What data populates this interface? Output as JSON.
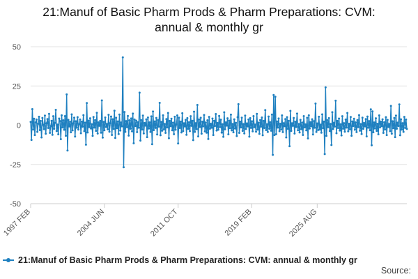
{
  "chart_data": {
    "type": "line",
    "title_lines": [
      "21:Manuf of Basic Pharm Prods & Pharm Preparations: CVM:",
      "annual & monthly gr"
    ],
    "xlabel": "",
    "ylabel": "",
    "ylim": [
      -50,
      50
    ],
    "yticks": [
      50,
      25,
      0,
      -25,
      -50
    ],
    "xticks": [
      "1997 FEB",
      "2004 JUN",
      "2011 OCT",
      "2019 FEB",
      "2025 AUG"
    ],
    "grid": "horizontal",
    "legend_position": "bottom",
    "colors": {
      "series": "#1f80c0",
      "grid": "#e3e3e3",
      "axis": "#cccccc"
    },
    "source_label": "Source:",
    "series": [
      {
        "name": "21:Manuf of Basic Pharm Prods & Pharm Preparations: CVM: annual & monthly gr",
        "start": "1997-02",
        "frequency": "monthly",
        "values": [
          2.1,
          -9.4,
          10.2,
          -2.8,
          4.1,
          -6.3,
          1.8,
          3.6,
          -4.2,
          0.9,
          5.4,
          -3.1,
          2.7,
          -7.8,
          4.6,
          0.3,
          -2.5,
          6.1,
          -5.4,
          1.2,
          3.9,
          -1.8,
          7.2,
          -4.9,
          -0.6,
          2.8,
          -6.1,
          5.7,
          -2.3,
          1.5,
          9.8,
          -3.7,
          0.4,
          -5.8,
          4.2,
          2.6,
          -8.9,
          6.3,
          -1.4,
          3.1,
          -2.9,
          5.8,
          -6.7,
          19.6,
          -16.1,
          3.4,
          -0.8,
          2.2,
          -4.5,
          6.9,
          -3.3,
          1.1,
          4.8,
          -7.2,
          2.5,
          -1.6,
          5.1,
          -2.8,
          0.7,
          3.6,
          -5.1,
          2.3,
          -0.9,
          6.4,
          -3.8,
          1.6,
          -12.4,
          14.1,
          -4.6,
          2.9,
          -1.2,
          4.4,
          -2.1,
          0.6,
          -6.8,
          5.2,
          -1.5,
          3.3,
          -3.6,
          7.9,
          -5.3,
          1.8,
          -0.4,
          2.7,
          -4.8,
          15.8,
          -7.9,
          2.1,
          -3.2,
          4.9,
          -1.1,
          0.8,
          -2.6,
          6.6,
          -4.1,
          1.3,
          5.5,
          -6.2,
          3.8,
          -2.4,
          9.2,
          -8.1,
          4.7,
          -1.9,
          2.4,
          -5.6,
          6.8,
          -3.4,
          1.7,
          -0.7,
          43.2,
          -26.8,
          8.4,
          -4.2,
          2.6,
          -1.3,
          5.9,
          -6.6,
          3.1,
          -2.2,
          4.3,
          -3.9,
          7.4,
          -11.5,
          3.6,
          -0.5,
          2.9,
          -4.4,
          1.9,
          -1.6,
          20.7,
          -9.8,
          3.2,
          -2.7,
          6.1,
          -5.2,
          1.4,
          -0.3,
          3.7,
          -7.6,
          4.9,
          -2.1,
          1.8,
          -4.3,
          5.6,
          -12.1,
          8.7,
          -3.1,
          2.4,
          -1.7,
          4.6,
          -5.9,
          3.3,
          -0.9,
          14.2,
          -6.4,
          2.1,
          -3.5,
          6.3,
          -2.6,
          0.8,
          -4.9,
          3.9,
          -1.4,
          7.8,
          -8.3,
          2.7,
          -0.6,
          4.1,
          -3.2,
          1.6,
          -5.7,
          5.4,
          -2.9,
          0.5,
          6.2,
          -11.6,
          4.8,
          -1.8,
          2.3,
          -4.6,
          7.6,
          -3.7,
          1.2,
          -0.8,
          3.4,
          -6.1,
          4.5,
          -2.3,
          1.9,
          -3.8,
          5.7,
          -0.4,
          2.8,
          -9.5,
          8.6,
          -4.2,
          1.3,
          -2.5,
          12.9,
          -7.1,
          3.6,
          -1.1,
          4.7,
          -5.4,
          2.2,
          -0.7,
          6.5,
          -3.9,
          1.7,
          -4.8,
          3.1,
          -8.8,
          5.3,
          -2.2,
          0.9,
          -1.6,
          4.2,
          -6.3,
          2.8,
          -0.5,
          7.1,
          -3.4,
          1.4,
          -2.9,
          5.9,
          -1.2,
          3.5,
          -4.7,
          0.6,
          -7.4,
          8.2,
          -2.6,
          1.8,
          -0.3,
          4.4,
          -5.8,
          2.9,
          -1.9,
          6.7,
          -3.3,
          0.8,
          -4.5,
          3.7,
          -2.1,
          1.5,
          -6.9,
          5.1,
          13.4,
          -4.9,
          2.3,
          -1.4,
          4.8,
          -3.6,
          0.7,
          -5.2,
          6.1,
          -2.4,
          1.1,
          -0.8,
          3.6,
          -7.3,
          4.5,
          -1.7,
          2.5,
          -3.9,
          5.8,
          -1.3,
          0.4,
          -4.1,
          7.2,
          -2.8,
          1.6,
          -5.5,
          3.3,
          -0.9,
          4.9,
          -6.4,
          2.7,
          -1.8,
          9.6,
          -3.1,
          0.6,
          -4.3,
          5.5,
          -2.2,
          1.9,
          -3.5,
          6.8,
          -18.9,
          19.2,
          -6.3,
          18.1,
          -5.7,
          2.4,
          -1.5,
          4.3,
          -3.8,
          0.9,
          -2.7,
          6.2,
          -4.4,
          1.3,
          -0.6,
          3.9,
          -7.8,
          5.1,
          -2.3,
          2.8,
          -13.4,
          9.1,
          -3.6,
          1.2,
          -0.4,
          4.6,
          -5.3,
          2.2,
          -1.1,
          7.4,
          -3.2,
          0.8,
          -4.6,
          3.4,
          -2.5,
          1.7,
          -6.2,
          5.8,
          -1.4,
          0.5,
          -3.3,
          4.7,
          -8.4,
          6.3,
          -2.1,
          1.9,
          -0.7,
          3.8,
          -5.9,
          2.6,
          -1.6,
          13.8,
          -4.3,
          1.1,
          -3.1,
          5.4,
          -2.8,
          0.4,
          -4.8,
          6.9,
          -1.9,
          2.3,
          -18.4,
          24.1,
          -6.8,
          3.2,
          -1.3,
          4.5,
          -3.7,
          0.8,
          -12.6,
          8.3,
          -2.4,
          1.5,
          -0.9,
          15.6,
          -5.1,
          2.7,
          -1.8,
          4.2,
          -3.4,
          0.6,
          -6.5,
          5.7,
          -2.2,
          1.3,
          -4.1,
          3.6,
          -1.5,
          7.8,
          -3.9,
          0.9,
          -2.6,
          5.2,
          -6.7,
          2.4,
          -0.5,
          4.1,
          -2.9,
          1.8,
          -4.4,
          3.3,
          -1.2,
          6.4,
          -3.5,
          0.7,
          -5.6,
          4.8,
          -2.3,
          1.4,
          -0.8,
          3.9,
          -7.1,
          5.5,
          -1.6,
          2.6,
          -3.2,
          10.1,
          -12.8,
          8.8,
          -4.5,
          1.7,
          -2.1,
          4.4,
          -3.6,
          0.9,
          -5.8,
          6.2,
          -1.4,
          2.3,
          -0.6,
          3.7,
          -4.9,
          1.9,
          -2.7,
          5.1,
          -6.3,
          3.4,
          -1.1,
          0.8,
          -3.8,
          12.3,
          -5.4,
          2.5,
          -1.9,
          4.6,
          -7.6,
          6.1,
          -2.2,
          1.6,
          -0.5,
          13.2,
          -6.4,
          3.7,
          -2.8,
          1.3,
          -4.2,
          5.3,
          -1.7,
          3.6,
          -2.4
        ]
      }
    ]
  }
}
